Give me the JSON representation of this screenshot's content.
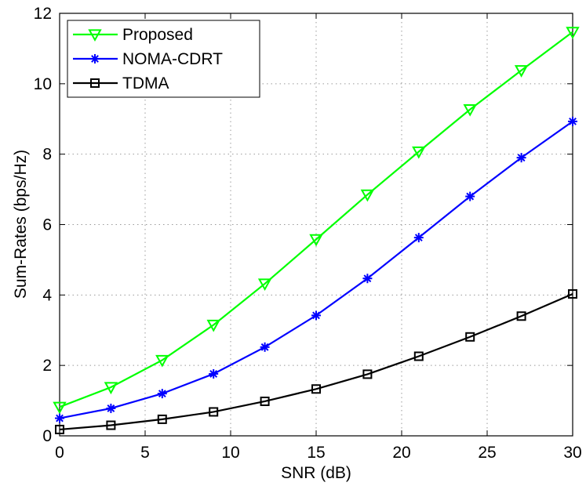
{
  "chart_data": {
    "type": "line",
    "title": "",
    "xlabel": "SNR (dB)",
    "ylabel": "Sum-Rates (bps/Hz)",
    "xlim": [
      0,
      30
    ],
    "ylim": [
      0,
      12
    ],
    "xticks": [
      "0",
      "5",
      "10",
      "15",
      "20",
      "25",
      "30"
    ],
    "yticks": [
      "0",
      "2",
      "4",
      "6",
      "8",
      "10",
      "12"
    ],
    "grid": true,
    "legend_position": "top-left",
    "x": [
      0,
      3,
      6,
      9,
      12,
      15,
      18,
      21,
      24,
      27,
      30
    ],
    "series": [
      {
        "name": "Proposed",
        "color": "#00ff00",
        "marker": "triangle-down",
        "values": [
          0.82,
          1.38,
          2.15,
          3.15,
          4.32,
          5.58,
          6.85,
          8.07,
          9.27,
          10.38,
          11.47
        ]
      },
      {
        "name": "NOMA-CDRT",
        "color": "#0000ff",
        "marker": "asterisk",
        "values": [
          0.5,
          0.78,
          1.2,
          1.76,
          2.52,
          3.42,
          4.47,
          5.63,
          6.8,
          7.9,
          8.93
        ]
      },
      {
        "name": "TDMA",
        "color": "#000000",
        "marker": "square",
        "values": [
          0.18,
          0.3,
          0.47,
          0.68,
          0.98,
          1.33,
          1.75,
          2.26,
          2.81,
          3.4,
          4.03
        ]
      }
    ]
  }
}
